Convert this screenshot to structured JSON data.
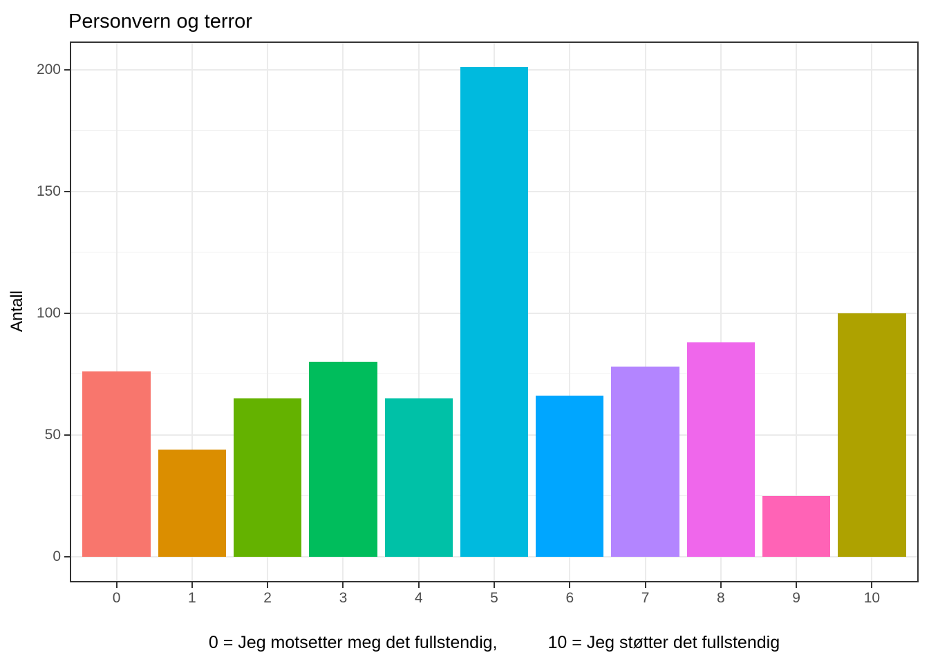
{
  "chart_data": {
    "type": "bar",
    "title": "Personvern og terror",
    "ylabel": "Antall",
    "xlabel": "0 = Jeg motsetter meg det fullstendig,        10 = Jeg støtter det fullstendig",
    "xlabel_parts": [
      "0 = Jeg motsetter meg det fullstendig,",
      "10 = Jeg støtter det fullstendig"
    ],
    "categories": [
      "0",
      "1",
      "2",
      "3",
      "4",
      "5",
      "6",
      "7",
      "8",
      "9",
      "10"
    ],
    "values": [
      76,
      44,
      65,
      80,
      65,
      201,
      66,
      78,
      88,
      25,
      100
    ],
    "bar_colors": [
      "#F8766D",
      "#DB8E00",
      "#64B200",
      "#00BD5C",
      "#00C1A7",
      "#00BADE",
      "#00A6FF",
      "#B385FF",
      "#EF67EB",
      "#FF63B6",
      "#AEA200"
    ],
    "ylim": [
      -10.05,
      211.05
    ],
    "y_major_ticks": [
      0,
      50,
      100,
      150,
      200
    ],
    "y_minor_gridlines": [
      25,
      75,
      125,
      175
    ],
    "bar_width_fraction": 0.9,
    "category_expand": 0.6,
    "legend": "none",
    "grid": "on"
  },
  "style": {
    "major_grid_color": "#EBEBEB",
    "minor_grid_color": "#F1F1F1",
    "panel_border_color": "#333333",
    "tick_color": "#333333",
    "axis_text_color": "#4D4D4D",
    "title_color": "#000000",
    "background_color": "#FFFFFF"
  }
}
